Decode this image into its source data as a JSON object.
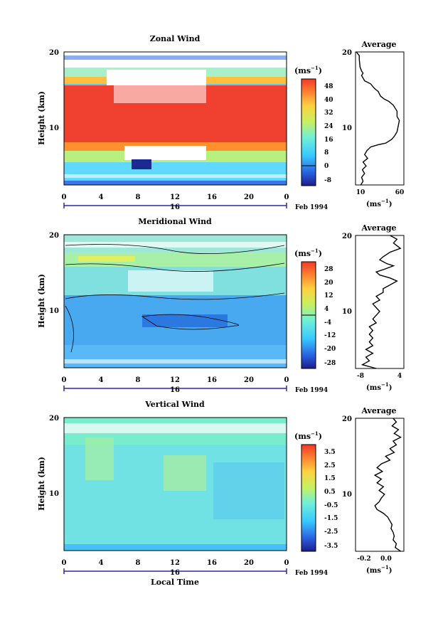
{
  "chart_data": [
    {
      "type": "heatmap",
      "title": "Zonal Wind",
      "ylabel": "Height (km)",
      "xticks": [
        "0",
        "4",
        "8",
        "12",
        "16",
        "20",
        "0"
      ],
      "yticks": [
        "20",
        "10"
      ],
      "xlim": [
        0,
        24
      ],
      "ylim": [
        2.5,
        20
      ],
      "date_label": "16",
      "date_suffix": "Feb 1994",
      "colorbar": {
        "unit": "(ms",
        "exp": "−1",
        "unit_close": ")",
        "ticks": [
          "48",
          "40",
          "32",
          "24",
          "16",
          "8",
          "0",
          "-8"
        ]
      },
      "profile": {
        "title": "Average",
        "xticks": [
          "10",
          "60"
        ],
        "xlabel": "(ms",
        "xexp": "−1",
        "xlabel_close": ")",
        "yticks": [
          "20",
          "10"
        ]
      },
      "average_profile": [
        [
          1,
          20
        ],
        [
          5,
          19.5
        ],
        [
          5,
          19
        ],
        [
          6,
          18
        ],
        [
          8,
          17.5
        ],
        [
          10,
          17.2
        ],
        [
          8,
          16.9
        ],
        [
          12,
          16.2
        ],
        [
          20,
          15.8
        ],
        [
          25,
          15.2
        ],
        [
          30,
          14.8
        ],
        [
          33,
          14.2
        ],
        [
          38,
          13.8
        ],
        [
          44,
          13.5
        ],
        [
          50,
          13
        ],
        [
          55,
          12.2
        ],
        [
          55,
          11.5
        ],
        [
          58,
          11
        ],
        [
          57,
          10.5
        ],
        [
          56,
          10
        ],
        [
          55,
          9.5
        ],
        [
          52,
          9
        ],
        [
          48,
          8.5
        ],
        [
          40,
          8
        ],
        [
          30,
          7.8
        ],
        [
          20,
          7.5
        ],
        [
          15,
          7
        ],
        [
          12,
          6.5
        ],
        [
          16,
          6
        ],
        [
          10,
          5.5
        ],
        [
          14,
          5
        ],
        [
          9,
          4.5
        ],
        [
          12,
          4
        ],
        [
          8,
          3.5
        ],
        [
          10,
          3
        ],
        [
          7,
          2.5
        ]
      ]
    },
    {
      "type": "heatmap",
      "title": "Meridional Wind",
      "ylabel": "Height (km)",
      "xticks": [
        "0",
        "4",
        "8",
        "12",
        "16",
        "20",
        "0"
      ],
      "yticks": [
        "20",
        "10"
      ],
      "xlim": [
        0,
        24
      ],
      "ylim": [
        2.5,
        20
      ],
      "date_label": "16",
      "date_suffix": "Feb 1994",
      "colorbar": {
        "unit": "(ms",
        "exp": "−1",
        "unit_close": ")",
        "ticks": [
          "28",
          "20",
          "12",
          "4",
          "-4",
          "-12",
          "-20",
          "-28"
        ]
      },
      "profile": {
        "title": "Average",
        "xticks": [
          "-8",
          "4"
        ],
        "xlabel": "(ms",
        "xexp": "−1",
        "xlabel_close": ")",
        "yticks": [
          "20",
          "10"
        ]
      },
      "average_profile": [
        [
          1,
          20
        ],
        [
          3,
          19.5
        ],
        [
          2,
          19
        ],
        [
          4,
          18.3
        ],
        [
          1,
          17.8
        ],
        [
          -1,
          17.2
        ],
        [
          -2,
          16.8
        ],
        [
          0,
          16.3
        ],
        [
          2,
          16
        ],
        [
          -1,
          15.5
        ],
        [
          -3,
          15.2
        ],
        [
          -2,
          14.8
        ],
        [
          1,
          14.4
        ],
        [
          3,
          14
        ],
        [
          1,
          13.5
        ],
        [
          -1,
          13
        ],
        [
          -1,
          12.5
        ],
        [
          -3,
          12
        ],
        [
          -2,
          11.5
        ],
        [
          -4,
          11
        ],
        [
          -3,
          10.5
        ],
        [
          -2,
          10
        ],
        [
          -3,
          9.5
        ],
        [
          -4,
          9
        ],
        [
          -3,
          8.5
        ],
        [
          -5,
          8
        ],
        [
          -4,
          7.5
        ],
        [
          -5,
          7
        ],
        [
          -4,
          6.5
        ],
        [
          -5,
          6
        ],
        [
          -4,
          5.5
        ],
        [
          -6,
          5
        ],
        [
          -4,
          4.5
        ],
        [
          -6,
          4
        ],
        [
          -5,
          3.5
        ],
        [
          -7,
          3
        ],
        [
          -3,
          2.5
        ]
      ]
    },
    {
      "type": "heatmap",
      "title": "Vertical Wind",
      "ylabel": "Height (km)",
      "xlabel": "Local Time",
      "xticks": [
        "0",
        "4",
        "8",
        "12",
        "16",
        "20",
        "0"
      ],
      "yticks": [
        "20",
        "10"
      ],
      "xlim": [
        0,
        24
      ],
      "ylim": [
        2.5,
        20
      ],
      "date_label": "16",
      "date_suffix": "Feb 1994",
      "colorbar": {
        "unit": "(ms",
        "exp": "−1",
        "unit_close": ")",
        "ticks": [
          "3.5",
          "2.5",
          "1.5",
          "0.5",
          "-0.5",
          "-1.5",
          "-2.5",
          "-3.5"
        ]
      },
      "profile": {
        "title": "Average",
        "xticks": [
          "-0.2",
          "0.0"
        ],
        "xlabel": "(ms",
        "xexp": "−1",
        "xlabel_close": ")",
        "yticks": [
          "20",
          "10"
        ]
      },
      "average_profile": [
        [
          0.05,
          20
        ],
        [
          0.08,
          19.5
        ],
        [
          0.04,
          19
        ],
        [
          0.1,
          18.5
        ],
        [
          0.06,
          18
        ],
        [
          0.12,
          17.5
        ],
        [
          0.05,
          17
        ],
        [
          0.08,
          16.5
        ],
        [
          0.02,
          16
        ],
        [
          0.06,
          15.5
        ],
        [
          -0.02,
          15
        ],
        [
          0.02,
          14.5
        ],
        [
          -0.06,
          14
        ],
        [
          -0.1,
          13.5
        ],
        [
          -0.05,
          13
        ],
        [
          -0.12,
          12.5
        ],
        [
          -0.06,
          12
        ],
        [
          -0.1,
          11.5
        ],
        [
          -0.04,
          11
        ],
        [
          -0.08,
          10.5
        ],
        [
          -0.03,
          10
        ],
        [
          -0.06,
          9.5
        ],
        [
          -0.08,
          9
        ],
        [
          -0.12,
          8.5
        ],
        [
          -0.1,
          8
        ],
        [
          -0.04,
          7.5
        ],
        [
          0.0,
          7
        ],
        [
          0.02,
          6.5
        ],
        [
          0.04,
          6
        ],
        [
          0.03,
          5.5
        ],
        [
          0.05,
          5
        ],
        [
          0.06,
          4.5
        ],
        [
          0.05,
          4
        ],
        [
          0.08,
          3.5
        ],
        [
          0.07,
          3
        ],
        [
          0.12,
          2.5
        ]
      ]
    }
  ]
}
